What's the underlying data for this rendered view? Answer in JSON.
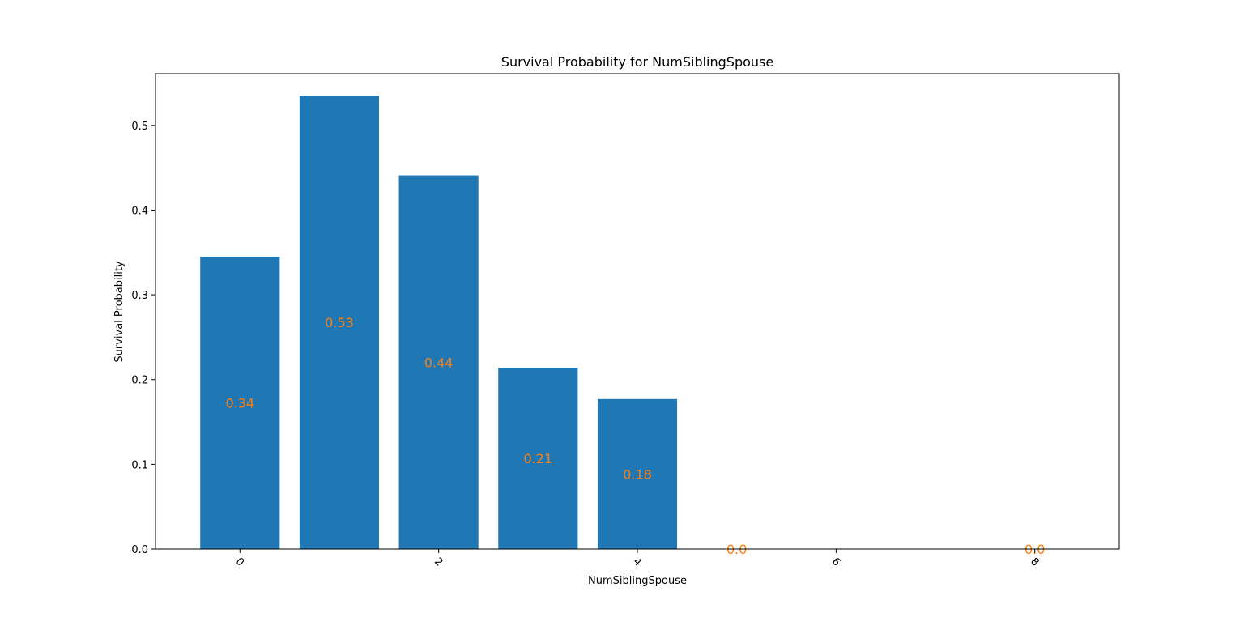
{
  "chart_data": {
    "type": "bar",
    "title": "Survival Probability for NumSiblingSpouse",
    "xlabel": "NumSiblingSpouse",
    "ylabel": "Survival Probability",
    "x": [
      0,
      1,
      2,
      3,
      4,
      5,
      8
    ],
    "values": [
      0.345,
      0.535,
      0.441,
      0.214,
      0.177,
      0.0,
      0.0
    ],
    "data_labels": [
      "0.34",
      "0.53",
      "0.44",
      "0.21",
      "0.18",
      "0.0",
      "0.0"
    ],
    "xlim": [
      -0.85,
      8.85
    ],
    "ylim": [
      0,
      0.561
    ],
    "xticks": [
      0,
      2,
      4,
      6,
      8
    ],
    "xtick_labels": [
      "0",
      "2",
      "4",
      "6",
      "8"
    ],
    "xtick_rotation": 45,
    "yticks": [
      0.0,
      0.1,
      0.2,
      0.3,
      0.4,
      0.5
    ],
    "ytick_labels": [
      "0.0",
      "0.1",
      "0.2",
      "0.3",
      "0.4",
      "0.5"
    ],
    "grid": false,
    "bar_color": "#1f77b4",
    "label_color": "#ff7f0e"
  }
}
